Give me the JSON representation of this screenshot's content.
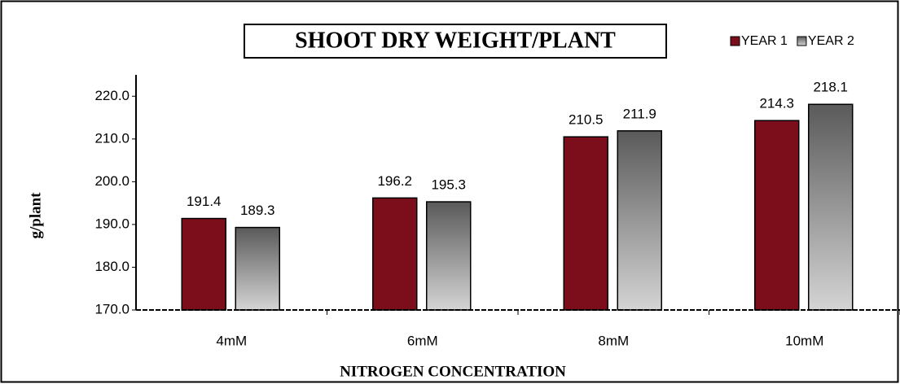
{
  "chart_data": {
    "type": "bar",
    "title": "SHOOT DRY WEIGHT/PLANT",
    "x_label": "NITROGEN CONCENTRATION",
    "y_label": "g/plant",
    "categories": [
      "4mM",
      "6mM",
      "8mM",
      "10mM"
    ],
    "series": [
      {
        "name": "YEAR 1",
        "color": "#7b0e1a",
        "values": [
          191.4,
          196.2,
          210.5,
          214.3
        ]
      },
      {
        "name": "YEAR 2",
        "color": "#808080",
        "values": [
          189.3,
          195.3,
          211.9,
          218.1
        ]
      }
    ],
    "ylim": [
      170,
      225
    ],
    "yticks": [
      {
        "value": 170,
        "label": "170.0"
      },
      {
        "value": 180,
        "label": "180.0"
      },
      {
        "value": 190,
        "label": "190.0"
      },
      {
        "value": 200,
        "label": "200.0"
      },
      {
        "value": 210,
        "label": "210.0"
      },
      {
        "value": 220,
        "label": "220.0"
      }
    ],
    "legend": "top-right"
  }
}
